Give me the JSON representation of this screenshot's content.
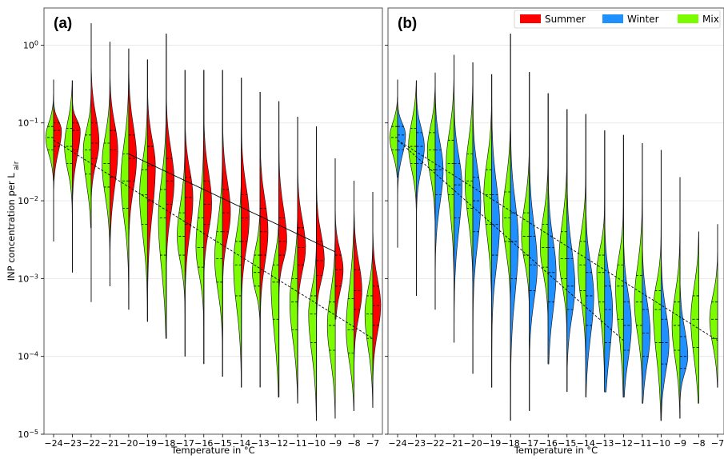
{
  "colors": {
    "summer": "#ff0000",
    "winter": "#1e90ff",
    "mix": "#7cfc00"
  },
  "chart_data": [
    {
      "type": "violin",
      "panel_label": "(a)",
      "ylabel": "INP concentration per L",
      "ylabel_sub": "air",
      "xlabel": "Temperature in °C",
      "yscale": "log",
      "ylim": [
        1e-05,
        3
      ],
      "y_ticks": [
        {
          "v": 1e-05,
          "t": "10",
          "e": "−5"
        },
        {
          "v": 0.0001,
          "t": "10",
          "e": "−4"
        },
        {
          "v": 0.001,
          "t": "10",
          "e": "−3"
        },
        {
          "v": 0.01,
          "t": "10",
          "e": "−2"
        },
        {
          "v": 0.1,
          "t": "10",
          "e": "−1"
        },
        {
          "v": 1,
          "t": "10",
          "e": "0"
        }
      ],
      "x_ticks": [
        "−24",
        "−23",
        "−22",
        "−21",
        "−20",
        "−19",
        "−18",
        "−17",
        "−16",
        "−15",
        "−14",
        "−13",
        "−12",
        "−11",
        "−10",
        "−9",
        "−8",
        "−7"
      ],
      "categories": [
        -24,
        -23,
        -22,
        -21,
        -20,
        -19,
        -18,
        -17,
        -16,
        -15,
        -14,
        -13,
        -12,
        -11,
        -10,
        -9,
        -8,
        -7
      ],
      "grid": "y",
      "left_series": {
        "name": "Mix",
        "color_key": "mix",
        "min": [
          0.018,
          0.0012,
          0.0045,
          0.0008,
          0.0004,
          0.00028,
          0.00017,
          0.0001,
          8e-05,
          5.5e-05,
          4e-05,
          4e-05,
          3e-05,
          2.5e-05,
          1.5e-05,
          1.6e-05,
          2e-05,
          2.2e-05
        ],
        "max": [
          0.36,
          0.35,
          1.9,
          1.1,
          0.9,
          0.65,
          1.4,
          0.48,
          0.48,
          0.48,
          0.38,
          0.25,
          0.19,
          0.12,
          0.09,
          0.035,
          0.018,
          0.013
        ],
        "q1": [
          0.045,
          0.03,
          0.022,
          0.015,
          0.008,
          0.005,
          0.002,
          0.002,
          0.0014,
          0.0009,
          0.0006,
          0.0008,
          0.0003,
          0.00022,
          0.00015,
          0.00012,
          0.00011,
          0.00017
        ],
        "median": [
          0.065,
          0.05,
          0.045,
          0.03,
          0.018,
          0.012,
          0.006,
          0.0035,
          0.0025,
          0.0018,
          0.0015,
          0.0012,
          0.0009,
          0.0005,
          0.00035,
          0.00025,
          0.00022,
          0.00035
        ],
        "q3": [
          0.09,
          0.085,
          0.07,
          0.055,
          0.04,
          0.025,
          0.014,
          0.007,
          0.006,
          0.004,
          0.003,
          0.002,
          0.0015,
          0.001,
          0.0006,
          0.0005,
          0.00055,
          0.0006
        ]
      },
      "right_series": {
        "name": "Summer",
        "color_key": "summer",
        "min": [
          0.003,
          0.0012,
          0.0005,
          0.0008,
          0.0004,
          0.00028,
          0.00017,
          0.0001,
          8e-05,
          5.5e-05,
          4e-05,
          4e-05,
          3e-05,
          2.5e-05,
          1.5e-05,
          0.0003,
          4e-05,
          3e-05
        ],
        "max": [
          0.36,
          0.35,
          1.9,
          1.1,
          0.9,
          0.65,
          1.4,
          0.48,
          0.48,
          0.48,
          0.38,
          0.25,
          0.19,
          0.12,
          0.09,
          0.035,
          0.018,
          0.013
        ],
        "q1": [
          0.05,
          0.045,
          0.035,
          0.02,
          0.018,
          0.01,
          0.009,
          0.005,
          0.005,
          0.004,
          0.003,
          0.002,
          0.002,
          0.0015,
          0.0011,
          0.0008,
          0.0004,
          0.00025
        ],
        "median": [
          0.08,
          0.08,
          0.055,
          0.045,
          0.035,
          0.028,
          0.018,
          0.011,
          0.009,
          0.007,
          0.006,
          0.004,
          0.003,
          0.0025,
          0.0017,
          0.0013,
          0.0007,
          0.00045
        ],
        "q3": [
          0.1,
          0.1,
          0.1,
          0.08,
          0.07,
          0.05,
          0.035,
          0.02,
          0.018,
          0.014,
          0.012,
          0.008,
          0.006,
          0.0045,
          0.003,
          0.002,
          0.0013,
          0.0008
        ]
      },
      "trend_solid": {
        "x": [
          -20,
          -9
        ],
        "y": [
          0.04,
          0.0022
        ]
      },
      "trend_dashed": {
        "x": [
          -24,
          -7
        ],
        "y": [
          0.06,
          0.00017
        ]
      }
    },
    {
      "type": "violin",
      "panel_label": "(b)",
      "xlabel": "Temperature in °C",
      "yscale": "log",
      "ylim": [
        1e-05,
        3
      ],
      "x_ticks": [
        "−24",
        "−23",
        "−22",
        "−21",
        "−20",
        "−19",
        "−18",
        "−17",
        "−16",
        "−15",
        "−14",
        "−13",
        "−12",
        "−11",
        "−10",
        "−9",
        "−8",
        "−7"
      ],
      "categories": [
        -24,
        -23,
        -22,
        -21,
        -20,
        -19,
        -18,
        -17,
        -16,
        -15,
        -14,
        -13,
        -12,
        -11,
        -10,
        -9,
        -8,
        -7
      ],
      "grid": "y",
      "legend": {
        "position": "top-right",
        "entries": [
          {
            "label": "Summer",
            "color_key": "summer"
          },
          {
            "label": "Winter",
            "color_key": "winter"
          },
          {
            "label": "Mix",
            "color_key": "mix"
          }
        ]
      },
      "left_series": {
        "name": "Mix",
        "color_key": "mix",
        "min": [
          0.02,
          0.0006,
          0.0004,
          0.00015,
          6e-05,
          4e-05,
          1.5e-05,
          2e-05,
          8e-05,
          3.5e-05,
          3e-05,
          3.5e-05,
          3e-05,
          2.5e-05,
          1.5e-05,
          1.6e-05,
          2.5e-05,
          4e-05
        ],
        "max": [
          0.36,
          0.35,
          0.44,
          0.75,
          0.6,
          0.42,
          1.4,
          0.45,
          0.24,
          0.15,
          0.13,
          0.08,
          0.07,
          0.055,
          0.045,
          0.02,
          0.004,
          0.005
        ],
        "q1": [
          0.045,
          0.03,
          0.025,
          0.012,
          0.008,
          0.005,
          0.003,
          0.002,
          0.0014,
          0.001,
          0.0007,
          0.0005,
          0.0003,
          0.00025,
          0.00015,
          0.00012,
          0.00013,
          0.00017
        ],
        "median": [
          0.065,
          0.05,
          0.045,
          0.03,
          0.018,
          0.012,
          0.006,
          0.0035,
          0.0025,
          0.0018,
          0.0015,
          0.0012,
          0.0008,
          0.0005,
          0.0004,
          0.00025,
          0.0003,
          0.0003
        ],
        "q3": [
          0.09,
          0.085,
          0.075,
          0.06,
          0.04,
          0.025,
          0.013,
          0.007,
          0.005,
          0.004,
          0.003,
          0.002,
          0.0015,
          0.0011,
          0.0007,
          0.0005,
          0.0006,
          0.0005
        ]
      },
      "right_series": {
        "name": "Winter",
        "color_key": "winter",
        "min": [
          0.0025,
          0.0006,
          0.0004,
          0.00015,
          6e-05,
          4e-05,
          1.5e-05,
          2e-05,
          8e-05,
          3.5e-05,
          3e-05,
          3.5e-05,
          3e-05,
          2.5e-05,
          1.5e-05,
          1.6e-05,
          null,
          null
        ],
        "max": [
          0.36,
          0.35,
          0.44,
          0.75,
          0.6,
          0.42,
          1.4,
          0.45,
          0.24,
          0.15,
          0.13,
          0.08,
          0.07,
          0.055,
          0.045,
          0.02,
          null,
          null
        ],
        "q1": [
          0.045,
          0.03,
          0.012,
          0.006,
          0.004,
          0.002,
          0.001,
          0.0007,
          0.0005,
          0.0004,
          0.00025,
          0.00015,
          0.00012,
          0.0001,
          8e-05,
          7e-05,
          null,
          null
        ],
        "median": [
          0.07,
          0.05,
          0.025,
          0.016,
          0.01,
          0.005,
          0.003,
          0.0015,
          0.0012,
          0.0008,
          0.0006,
          0.0004,
          0.00025,
          0.0002,
          0.00015,
          0.0001,
          null,
          null
        ],
        "q3": [
          0.09,
          0.075,
          0.045,
          0.03,
          0.02,
          0.012,
          0.007,
          0.0035,
          0.0025,
          0.0018,
          0.0012,
          0.0008,
          0.0005,
          0.0004,
          0.0003,
          0.00018,
          null,
          null
        ]
      },
      "trend_dashed_1": {
        "x": [
          -24,
          -12
        ],
        "y": [
          0.06,
          0.00016
        ]
      },
      "trend_dashed_2": {
        "x": [
          -24,
          -7
        ],
        "y": [
          0.06,
          0.00016
        ]
      }
    }
  ]
}
